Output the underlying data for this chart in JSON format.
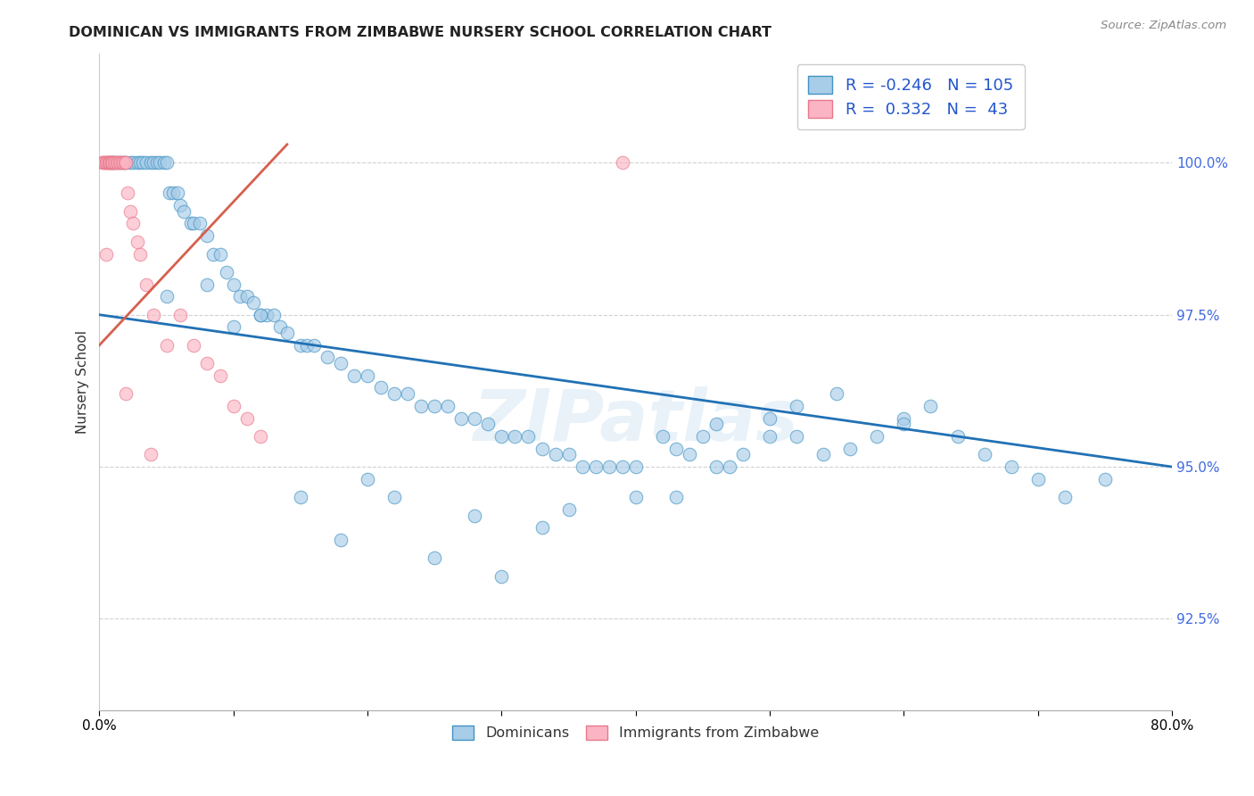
{
  "title": "DOMINICAN VS IMMIGRANTS FROM ZIMBABWE NURSERY SCHOOL CORRELATION CHART",
  "source": "Source: ZipAtlas.com",
  "ylabel": "Nursery School",
  "xmin": 0.0,
  "xmax": 80.0,
  "ymin": 91.0,
  "ymax": 101.8,
  "r_dominican": -0.246,
  "n_dominican": 105,
  "r_zimbabwe": 0.332,
  "n_zimbabwe": 43,
  "color_dominican_fill": "#a8cde8",
  "color_dominican_edge": "#4393c3",
  "color_zimbabwe_fill": "#fbb4c4",
  "color_zimbabwe_edge": "#e8788a",
  "color_line_dominican": "#2171b5",
  "color_line_zimbabwe": "#d6604d",
  "legend_label_dominican": "Dominicans",
  "legend_label_zimbabwe": "Immigrants from Zimbabwe",
  "watermark": "ZIPatlas",
  "dom_line_x0": 0.0,
  "dom_line_y0": 97.5,
  "dom_line_x1": 80.0,
  "dom_line_y1": 95.0,
  "zim_line_x0": 0.0,
  "zim_line_y0": 97.0,
  "zim_line_x1": 14.0,
  "zim_line_y1": 100.3,
  "dominican_x": [
    1.0,
    1.2,
    1.5,
    1.8,
    2.0,
    2.3,
    2.5,
    2.8,
    3.0,
    3.2,
    3.5,
    3.8,
    4.0,
    4.3,
    4.5,
    4.8,
    5.0,
    5.2,
    5.5,
    5.8,
    6.0,
    6.3,
    6.8,
    7.0,
    7.5,
    8.0,
    8.5,
    9.0,
    9.5,
    10.0,
    10.5,
    11.0,
    11.5,
    12.0,
    12.5,
    13.0,
    13.5,
    14.0,
    15.0,
    15.5,
    16.0,
    17.0,
    18.0,
    19.0,
    20.0,
    21.0,
    22.0,
    23.0,
    24.0,
    25.0,
    26.0,
    27.0,
    28.0,
    29.0,
    30.0,
    31.0,
    32.0,
    33.0,
    34.0,
    35.0,
    36.0,
    37.0,
    38.0,
    39.0,
    40.0,
    42.0,
    43.0,
    44.0,
    45.0,
    46.0,
    47.0,
    48.0,
    50.0,
    52.0,
    54.0,
    56.0,
    58.0,
    60.0,
    62.0,
    64.0,
    66.0,
    68.0,
    70.0,
    72.0,
    75.0,
    22.0,
    28.0,
    33.0,
    35.0,
    40.0,
    43.0,
    46.0,
    50.0,
    52.0,
    55.0,
    60.0,
    18.0,
    25.0,
    30.0,
    15.0,
    20.0,
    10.0,
    8.0,
    5.0,
    12.0
  ],
  "dominican_y": [
    100.0,
    100.0,
    100.0,
    100.0,
    100.0,
    100.0,
    100.0,
    100.0,
    100.0,
    100.0,
    100.0,
    100.0,
    100.0,
    100.0,
    100.0,
    100.0,
    100.0,
    99.5,
    99.5,
    99.5,
    99.3,
    99.2,
    99.0,
    99.0,
    99.0,
    98.8,
    98.5,
    98.5,
    98.2,
    98.0,
    97.8,
    97.8,
    97.7,
    97.5,
    97.5,
    97.5,
    97.3,
    97.2,
    97.0,
    97.0,
    97.0,
    96.8,
    96.7,
    96.5,
    96.5,
    96.3,
    96.2,
    96.2,
    96.0,
    96.0,
    96.0,
    95.8,
    95.8,
    95.7,
    95.5,
    95.5,
    95.5,
    95.3,
    95.2,
    95.2,
    95.0,
    95.0,
    95.0,
    95.0,
    95.0,
    95.5,
    95.3,
    95.2,
    95.5,
    95.7,
    95.0,
    95.2,
    95.8,
    95.5,
    95.2,
    95.3,
    95.5,
    95.8,
    96.0,
    95.5,
    95.2,
    95.0,
    94.8,
    94.5,
    94.8,
    94.5,
    94.2,
    94.0,
    94.3,
    94.5,
    94.5,
    95.0,
    95.5,
    96.0,
    96.2,
    95.7,
    93.8,
    93.5,
    93.2,
    94.5,
    94.8,
    97.3,
    98.0,
    97.8,
    97.5
  ],
  "zimbabwe_x": [
    0.2,
    0.3,
    0.4,
    0.5,
    0.5,
    0.6,
    0.7,
    0.7,
    0.8,
    0.8,
    0.9,
    0.9,
    1.0,
    1.0,
    1.1,
    1.2,
    1.3,
    1.4,
    1.5,
    1.6,
    1.7,
    1.8,
    1.9,
    2.0,
    2.1,
    2.3,
    2.5,
    2.8,
    3.0,
    3.5,
    4.0,
    5.0,
    6.0,
    7.0,
    8.0,
    9.0,
    10.0,
    11.0,
    12.0,
    0.5,
    2.0,
    3.8,
    39.0
  ],
  "zimbabwe_y": [
    100.0,
    100.0,
    100.0,
    100.0,
    100.0,
    100.0,
    100.0,
    100.0,
    100.0,
    100.0,
    100.0,
    100.0,
    100.0,
    100.0,
    100.0,
    100.0,
    100.0,
    100.0,
    100.0,
    100.0,
    100.0,
    100.0,
    100.0,
    100.0,
    99.5,
    99.2,
    99.0,
    98.7,
    98.5,
    98.0,
    97.5,
    97.0,
    97.5,
    97.0,
    96.7,
    96.5,
    96.0,
    95.8,
    95.5,
    98.5,
    96.2,
    95.2,
    100.0
  ]
}
